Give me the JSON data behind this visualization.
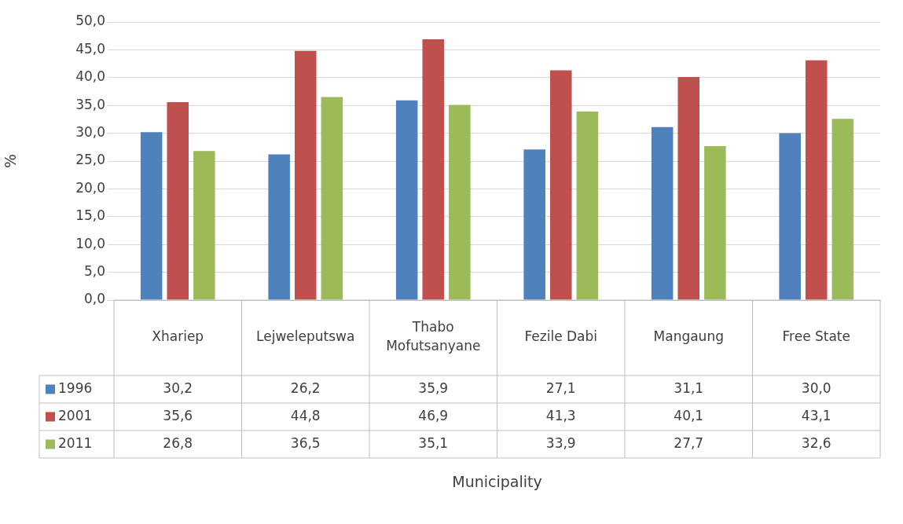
{
  "chart_data": {
    "type": "bar",
    "annotations": [
      "Municipality"
    ],
    "ylabel": "%",
    "categories": [
      "Xhariep",
      "Lejweleputswa",
      "Thabo Mofutsanyane",
      "Fezile Dabi",
      "Mangaung",
      "Free State"
    ],
    "series": [
      {
        "name": "1996",
        "color": "#4f81bd",
        "values": [
          30.2,
          26.2,
          35.9,
          27.1,
          31.1,
          30.0
        ],
        "value_labels": [
          "30,2",
          "26,2",
          "35,9",
          "27,1",
          "31,1",
          "30,0"
        ]
      },
      {
        "name": "2001",
        "color": "#c0504d",
        "values": [
          35.6,
          44.8,
          46.9,
          41.3,
          40.1,
          43.1
        ],
        "value_labels": [
          "35,6",
          "44,8",
          "46,9",
          "41,3",
          "40,1",
          "43,1"
        ]
      },
      {
        "name": "2011",
        "color": "#9bbb59",
        "values": [
          26.8,
          36.5,
          35.1,
          33.9,
          27.7,
          32.6
        ],
        "value_labels": [
          "26,8",
          "36,5",
          "35,1",
          "33,9",
          "27,7",
          "32,6"
        ]
      }
    ],
    "ylim": [
      0,
      50
    ],
    "yticks": [
      {
        "value": 0,
        "label": "0,0"
      },
      {
        "value": 5,
        "label": "5,0"
      },
      {
        "value": 10,
        "label": "10,0"
      },
      {
        "value": 15,
        "label": "15,0"
      },
      {
        "value": 20,
        "label": "20,0"
      },
      {
        "value": 25,
        "label": "25,0"
      },
      {
        "value": 30,
        "label": "30,0"
      },
      {
        "value": 35,
        "label": "35,0"
      },
      {
        "value": 40,
        "label": "40,0"
      },
      {
        "value": 45,
        "label": "45,0"
      },
      {
        "value": 50,
        "label": "50,0"
      }
    ],
    "grid": "y",
    "legend": "bottom"
  }
}
